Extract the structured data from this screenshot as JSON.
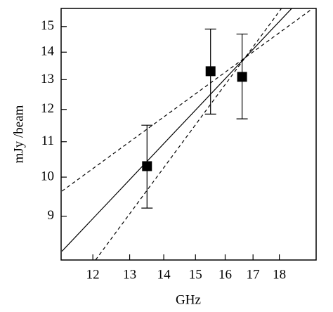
{
  "chart_data": {
    "type": "scatter",
    "x_label": "GHz",
    "y_label": "mJy /beam",
    "log_x": true,
    "log_y": true,
    "xlim": [
      11.2,
      19.5
    ],
    "ylim": [
      8,
      15.75
    ],
    "xticks": [
      12,
      13,
      14,
      15,
      16,
      17,
      18
    ],
    "yticks": [
      9,
      10,
      11,
      12,
      13,
      14,
      15
    ],
    "points": {
      "color": "#000000",
      "x": [
        13.5,
        15.5,
        16.6
      ],
      "values": [
        10.3,
        13.3,
        13.1
      ],
      "errors_low": [
        1.1,
        1.45,
        1.4
      ],
      "errors_high": [
        1.2,
        1.6,
        1.6
      ]
    },
    "lines": [
      {
        "style": "solid",
        "color": "#000000",
        "x": [
          11.22,
          18.5
        ],
        "values": [
          8.19,
          15.76
        ]
      },
      {
        "style": "dashed",
        "color": "#000000",
        "x": [
          11.22,
          19.37
        ],
        "values": [
          9.63,
          15.76
        ]
      },
      {
        "style": "dashed",
        "color": "#000000",
        "x": [
          12.07,
          18.09
        ],
        "values": [
          8.0,
          15.76
        ]
      }
    ]
  }
}
